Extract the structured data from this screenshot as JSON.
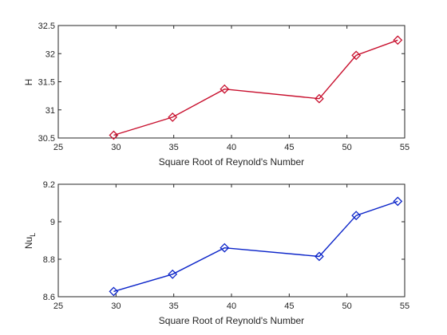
{
  "chart_data": [
    {
      "type": "line",
      "xlabel": "Square Root of Reynold's Number",
      "ylabel": "H",
      "ylabel_sub": "",
      "xlim": [
        25,
        55
      ],
      "ylim": [
        30.5,
        32.5
      ],
      "xticks": [
        "25",
        "30",
        "35",
        "40",
        "45",
        "50",
        "55"
      ],
      "yticks": [
        "30.5",
        "31",
        "31.5",
        "32",
        "32.5"
      ],
      "grid": false,
      "legend": "none",
      "marker": "diamond",
      "color": "#c8102e",
      "series": [
        {
          "x": [
            29.8,
            34.9,
            39.4,
            47.6,
            50.8,
            54.4
          ],
          "y": [
            30.55,
            30.87,
            31.37,
            31.2,
            31.97,
            32.24
          ]
        }
      ]
    },
    {
      "type": "line",
      "xlabel": "Square Root of Reynold's Number",
      "ylabel": "Nu",
      "ylabel_sub": "L",
      "xlim": [
        25,
        55
      ],
      "ylim": [
        8.6,
        9.2
      ],
      "xticks": [
        "25",
        "30",
        "35",
        "40",
        "45",
        "50",
        "55"
      ],
      "yticks": [
        "8.6",
        "8.8",
        "9",
        "9.2"
      ],
      "grid": false,
      "legend": "none",
      "marker": "diamond",
      "color": "#0b24c9",
      "series": [
        {
          "x": [
            29.8,
            34.9,
            39.4,
            47.6,
            50.8,
            54.4
          ],
          "y": [
            8.628,
            8.72,
            8.861,
            8.815,
            9.033,
            9.109
          ]
        }
      ]
    }
  ]
}
